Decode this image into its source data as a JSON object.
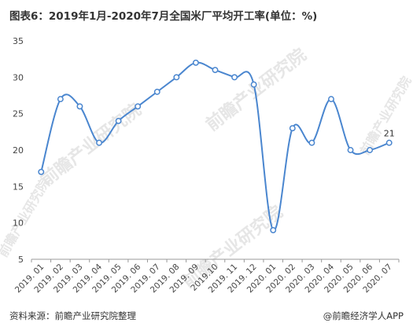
{
  "title": "图表6：2019年1月-2020年7月全国米厂平均开工率(单位：%)",
  "footer": {
    "source": "资料来源：前瞻产业研究院整理",
    "credit": "@前瞻经济学人APP"
  },
  "watermark": "前瞻产业研究院",
  "chart_data": {
    "type": "line",
    "title": "图表6：2019年1月-2020年7月全国米厂平均开工率(单位：%)",
    "categories": [
      "2019. 01",
      "2019. 02",
      "2019. 03",
      "2019. 04",
      "2019. 05",
      "2019. 06",
      "2019. 07",
      "2019. 08",
      "2019. 09",
      "2019.10",
      "2019. 11",
      "2019. 12",
      "2020. 01",
      "2020. 02",
      "2020. 03",
      "2020. 04",
      "2020. 05",
      "2020. 06",
      "2020. 07"
    ],
    "series": [
      {
        "values": [
          17,
          27,
          26,
          21,
          24,
          26,
          28,
          30,
          32,
          31,
          30,
          29,
          9,
          23,
          21,
          27,
          20,
          20,
          21
        ]
      }
    ],
    "data_labels": [
      {
        "index": 18,
        "text": "21"
      }
    ],
    "ylim": [
      5,
      35
    ],
    "yticks": [
      5,
      10,
      15,
      20,
      25,
      30,
      35
    ],
    "grid": false,
    "line_color": "#4a86cf",
    "smooth": true
  }
}
